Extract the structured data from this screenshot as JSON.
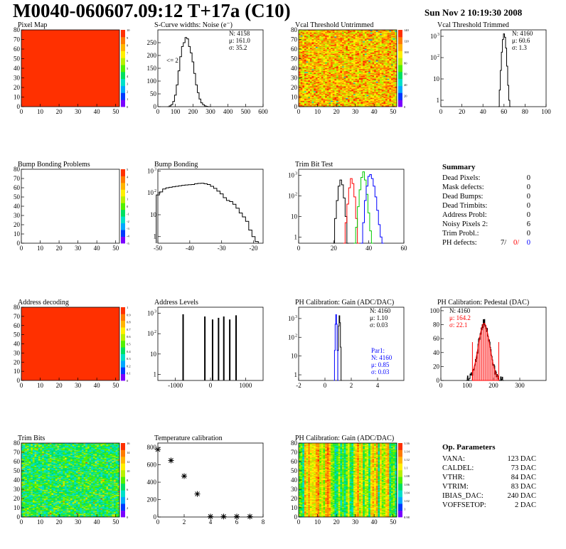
{
  "header": {
    "title": "M0040-060607.09:12 T+17a (C10)",
    "date": "Sun Nov  2 10:19:30 2008"
  },
  "colors": {
    "palette": [
      "#7a00ff",
      "#0038ff",
      "#00a8ff",
      "#00e0c8",
      "#00e060",
      "#52f000",
      "#b8f000",
      "#fff000",
      "#ffb400",
      "#ff7a00",
      "#ff3000"
    ],
    "red": "#ff0000",
    "green": "#00cc00",
    "blue": "#0000ff"
  },
  "summary": {
    "title": "Summary",
    "rows": [
      {
        "label": "Dead Pixels:",
        "value": "0"
      },
      {
        "label": "Mask defects:",
        "value": "0"
      },
      {
        "label": "Dead Bumps:",
        "value": "0"
      },
      {
        "label": "Dead Trimbits:",
        "value": "0"
      },
      {
        "label": "Address Probl:",
        "value": "0"
      },
      {
        "label": "Noisy Pixels 2:",
        "value": "6"
      },
      {
        "label": "Trim Probl.:",
        "value": "0"
      }
    ],
    "ph_defects": {
      "label": "PH defects:",
      "v1": "7/",
      "v2": "0/",
      "v3": "0"
    }
  },
  "op_params": {
    "title": "Op. Parameters",
    "rows": [
      {
        "label": "VANA:",
        "value": "123 DAC"
      },
      {
        "label": "CALDEL:",
        "value": "73 DAC"
      },
      {
        "label": "VTHR:",
        "value": "84 DAC"
      },
      {
        "label": "VTRIM:",
        "value": "83 DAC"
      },
      {
        "label": "IBIAS_DAC:",
        "value": "240 DAC"
      },
      {
        "label": "VOFFSETOP:",
        "value": "2 DAC"
      }
    ]
  },
  "chart_data": [
    {
      "id": "pixel_map",
      "type": "heatmap",
      "title": "Pixel Map",
      "xlim": [
        0,
        52
      ],
      "ylim": [
        0,
        80
      ],
      "xticks": [
        0,
        10,
        20,
        30,
        40,
        50
      ],
      "yticks": [
        0,
        10,
        20,
        30,
        40,
        50,
        60,
        70,
        80
      ],
      "fill": "uniform",
      "level": 10,
      "zticks": [
        "10",
        "9",
        "8",
        "7",
        "6",
        "5",
        "4",
        "3",
        "2",
        "1",
        "0"
      ]
    },
    {
      "id": "scurve",
      "type": "line",
      "title": "S-Curve widths: Noise (e⁻)",
      "xlim": [
        0,
        600
      ],
      "ylim": [
        0,
        300
      ],
      "xticks": [
        0,
        100,
        200,
        300,
        400,
        500,
        600
      ],
      "yticks": [
        0,
        50,
        100,
        150,
        200,
        250
      ],
      "stats": [
        "N: 4158",
        "μ: 161.0",
        "σ: 35.2"
      ],
      "annotation": "<= 2",
      "x": [
        60,
        70,
        80,
        90,
        100,
        110,
        120,
        130,
        140,
        150,
        160,
        170,
        180,
        190,
        200,
        210,
        220,
        230,
        240,
        250,
        260,
        270,
        280,
        290,
        300
      ],
      "values": [
        0,
        3,
        8,
        20,
        45,
        85,
        140,
        195,
        235,
        250,
        270,
        265,
        235,
        210,
        175,
        130,
        85,
        55,
        30,
        15,
        8,
        3,
        1,
        0,
        0
      ]
    },
    {
      "id": "vcal_untrimmed",
      "type": "heatmap",
      "title": "Vcal Threshold Untrimmed",
      "xlim": [
        0,
        52
      ],
      "ylim": [
        0,
        80
      ],
      "xticks": [
        0,
        10,
        20,
        30,
        40,
        50
      ],
      "yticks": [
        0,
        10,
        20,
        30,
        40,
        50,
        60,
        70,
        80
      ],
      "fill": "noisy-warm",
      "zticks": [
        "140",
        "120",
        "100",
        "80",
        "60",
        "40",
        "20",
        "0"
      ]
    },
    {
      "id": "vcal_trimmed",
      "type": "line",
      "title": "Vcal Threshold Trimmed",
      "xlim": [
        0,
        100
      ],
      "ylog": true,
      "ylim": [
        0.5,
        2000
      ],
      "xticks": [
        0,
        20,
        40,
        60,
        80,
        100
      ],
      "yticks": [
        1,
        10,
        100,
        1000
      ],
      "stats": [
        "N: 4160",
        "μ: 60.6",
        "σ:  1.3"
      ],
      "x": [
        55,
        56,
        57,
        58,
        59,
        60,
        61,
        62,
        63,
        64,
        65,
        66
      ],
      "values": [
        0,
        3,
        25,
        180,
        700,
        1300,
        900,
        280,
        40,
        5,
        1,
        0
      ]
    },
    {
      "id": "bump_problems",
      "type": "heatmap",
      "title": "Bump Bonding Problems",
      "xlim": [
        0,
        52
      ],
      "ylim": [
        0,
        80
      ],
      "xticks": [
        0,
        10,
        20,
        30,
        40,
        50
      ],
      "yticks": [
        0,
        10,
        20,
        30,
        40,
        50,
        60,
        70,
        80
      ],
      "fill": "empty",
      "zticks": [
        "5",
        "4",
        "3",
        "2",
        "1",
        "0",
        "-1",
        "-2",
        "-3",
        "-4",
        "-5"
      ]
    },
    {
      "id": "bump_bonding",
      "type": "line",
      "title": "Bump Bonding",
      "xlim": [
        -50,
        -17
      ],
      "ylog": true,
      "ylim": [
        0.5,
        1200
      ],
      "xticks": [
        -50,
        -40,
        -30,
        -20
      ],
      "yticks": [
        1,
        10,
        100,
        1000
      ],
      "x": [
        -50,
        -49,
        -48,
        -47,
        -46,
        -45,
        -44,
        -43,
        -42,
        -41,
        -40,
        -39,
        -38,
        -37,
        -36,
        -35,
        -34,
        -33,
        -32,
        -31,
        -30,
        -29,
        -28,
        -27,
        -26,
        -25,
        -24,
        -23,
        -22,
        -21,
        -20,
        -19
      ],
      "values": [
        80,
        110,
        150,
        170,
        180,
        190,
        200,
        210,
        220,
        230,
        235,
        240,
        260,
        270,
        275,
        260,
        240,
        200,
        160,
        120,
        90,
        60,
        45,
        40,
        30,
        20,
        12,
        8,
        5,
        2,
        1,
        0.6
      ]
    },
    {
      "id": "trim_bit_test",
      "type": "line",
      "title": "Trim Bit Test",
      "xlim": [
        0,
        60
      ],
      "ylog": true,
      "ylim": [
        0.5,
        2000
      ],
      "xticks": [
        0,
        20,
        40,
        60
      ],
      "yticks": [
        1,
        10,
        100,
        1000
      ],
      "series": [
        {
          "color": "#000000",
          "x": [
            20,
            21,
            22,
            23,
            24,
            25,
            26,
            27,
            28
          ],
          "values": [
            0,
            8,
            60,
            300,
            600,
            350,
            80,
            10,
            0
          ]
        },
        {
          "color": "#ff0000",
          "x": [
            26,
            27,
            28,
            29,
            30,
            31,
            32,
            33,
            34
          ],
          "values": [
            0,
            5,
            40,
            250,
            700,
            400,
            90,
            8,
            0
          ]
        },
        {
          "color": "#00cc00",
          "x": [
            32,
            33,
            34,
            35,
            36,
            37,
            38,
            39,
            40,
            41,
            42
          ],
          "values": [
            0,
            3,
            30,
            200,
            800,
            1500,
            600,
            120,
            15,
            2,
            0
          ]
        },
        {
          "color": "#0000ff",
          "x": [
            36,
            37,
            38,
            39,
            40,
            41,
            42,
            43,
            44,
            45,
            46,
            47,
            48
          ],
          "values": [
            0,
            5,
            60,
            300,
            900,
            1100,
            700,
            300,
            90,
            20,
            4,
            1,
            0
          ]
        }
      ]
    },
    {
      "id": "address_decoding",
      "type": "heatmap",
      "title": "Address decoding",
      "xlim": [
        0,
        52
      ],
      "ylim": [
        0,
        80
      ],
      "xticks": [
        0,
        10,
        20,
        30,
        40,
        50
      ],
      "yticks": [
        0,
        10,
        20,
        30,
        40,
        50,
        60,
        70,
        80
      ],
      "fill": "uniform",
      "level": 1,
      "zticks": [
        "1",
        "0.9",
        "0.8",
        "0.7",
        "0.6",
        "0.5",
        "0.4",
        "0.3",
        "0.2",
        "0.1",
        "0"
      ]
    },
    {
      "id": "address_levels",
      "type": "line",
      "title": "Address Levels",
      "xlim": [
        -1500,
        1500
      ],
      "ylog": true,
      "ylim": [
        0.5,
        2000
      ],
      "xticks": [
        -1000,
        0,
        1000
      ],
      "yticks": [
        1,
        10,
        100,
        1000
      ],
      "spikes": [
        {
          "x": -780,
          "h": 900
        },
        {
          "x": -160,
          "h": 700
        },
        {
          "x": 60,
          "h": 500
        },
        {
          "x": 230,
          "h": 600
        },
        {
          "x": 380,
          "h": 700
        },
        {
          "x": 550,
          "h": 500
        },
        {
          "x": 730,
          "h": 800
        }
      ]
    },
    {
      "id": "ph_gain",
      "type": "line",
      "title": "PH Calibration: Gain (ADC/DAC)",
      "xlim": [
        -2,
        6
      ],
      "ylog": true,
      "ylim": [
        0.5,
        4000
      ],
      "xticks": [
        -2,
        0,
        2,
        4
      ],
      "yticks": [
        1,
        10,
        100,
        1000
      ],
      "stats": [
        "N: 4160",
        "μ: 1.10",
        "σ: 0.03"
      ],
      "stats2": [
        "Par1:",
        "N: 4160",
        "μ: 0.85",
        "σ: 0.03"
      ],
      "series": [
        {
          "color": "#000000",
          "x": [
            0.95,
            1.0,
            1.05,
            1.1,
            1.15,
            1.2,
            1.25
          ],
          "values": [
            0,
            20,
            400,
            1400,
            600,
            30,
            0
          ]
        },
        {
          "color": "#0000ff",
          "x": [
            0.7,
            0.75,
            0.8,
            0.85,
            0.9,
            0.95,
            1.0
          ],
          "values": [
            0,
            20,
            500,
            1600,
            500,
            20,
            0
          ]
        }
      ]
    },
    {
      "id": "ph_pedestal",
      "type": "line",
      "title": "PH Calibration: Pedestal (DAC)",
      "xlim": [
        0,
        400
      ],
      "ylim": [
        0,
        105
      ],
      "xticks": [
        0,
        100,
        200,
        300
      ],
      "yticks": [
        0,
        20,
        40,
        60,
        80,
        100
      ],
      "stats": [
        "N: 4160",
        "μ: 164.2",
        "σ: 22.1"
      ],
      "fit_range": [
        120,
        220
      ],
      "mu": 164.2,
      "sigma": 22.1,
      "peak": 82
    },
    {
      "id": "trim_bits",
      "type": "heatmap",
      "title": "Trim Bits",
      "xlim": [
        0,
        52
      ],
      "ylim": [
        0,
        80
      ],
      "xticks": [
        0,
        10,
        20,
        30,
        40,
        50
      ],
      "yticks": [
        0,
        10,
        20,
        30,
        40,
        50,
        60,
        70,
        80
      ],
      "fill": "noisy-green",
      "zticks": [
        "16",
        "14",
        "12",
        "10",
        "8",
        "6",
        "4",
        "2",
        "0"
      ]
    },
    {
      "id": "temperature",
      "type": "scatter",
      "title": "Temperature calibration",
      "xlim": [
        0,
        8
      ],
      "ylim": [
        0,
        850
      ],
      "xticks": [
        0,
        2,
        4,
        6,
        8
      ],
      "yticks": [
        0,
        200,
        400,
        600,
        800
      ],
      "x": [
        0,
        1,
        2,
        3,
        4,
        5,
        6,
        7
      ],
      "values": [
        775,
        650,
        470,
        265,
        5,
        5,
        5,
        5
      ]
    },
    {
      "id": "ph_gain_map",
      "type": "heatmap",
      "title": "PH Calibration: Gain (ADC/DAC)",
      "xlim": [
        0,
        52
      ],
      "ylim": [
        0,
        80
      ],
      "xticks": [
        0,
        10,
        20,
        30,
        40,
        50
      ],
      "yticks": [
        0,
        10,
        20,
        30,
        40,
        50,
        60,
        70,
        80
      ],
      "fill": "stripes",
      "zticks": [
        "1.16",
        "1.14",
        "1.12",
        "1.1",
        "1.08",
        "1.06",
        "1.04",
        "1.02",
        "1",
        "0.98"
      ]
    }
  ]
}
